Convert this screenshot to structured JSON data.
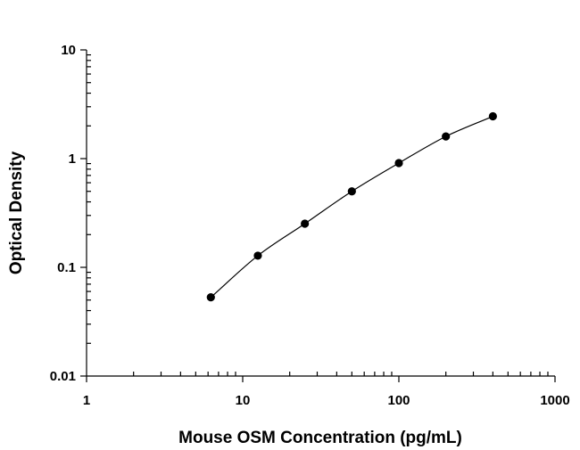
{
  "chart_data": {
    "type": "scatter",
    "title": "",
    "xlabel": "Mouse OSM Concentration (pg/mL)",
    "ylabel": "Optical Density",
    "x_scale": "log",
    "y_scale": "log",
    "xlim": [
      1,
      1000
    ],
    "ylim": [
      0.01,
      10
    ],
    "x_tick_labels": [
      "1",
      "10",
      "100",
      "1000"
    ],
    "y_tick_labels": [
      "10",
      "1",
      "0.1",
      "0.01"
    ],
    "grid": false,
    "legend": "none",
    "series": [
      {
        "x": [
          6.25,
          12.5,
          25,
          50,
          100,
          200,
          400
        ],
        "y": [
          0.053,
          0.128,
          0.252,
          0.5,
          0.91,
          1.6,
          2.45
        ],
        "marker": "circle",
        "fit_curve": true
      }
    ],
    "colors": {
      "axis": "#000000",
      "marker": "#000000",
      "curve": "#000000"
    }
  }
}
